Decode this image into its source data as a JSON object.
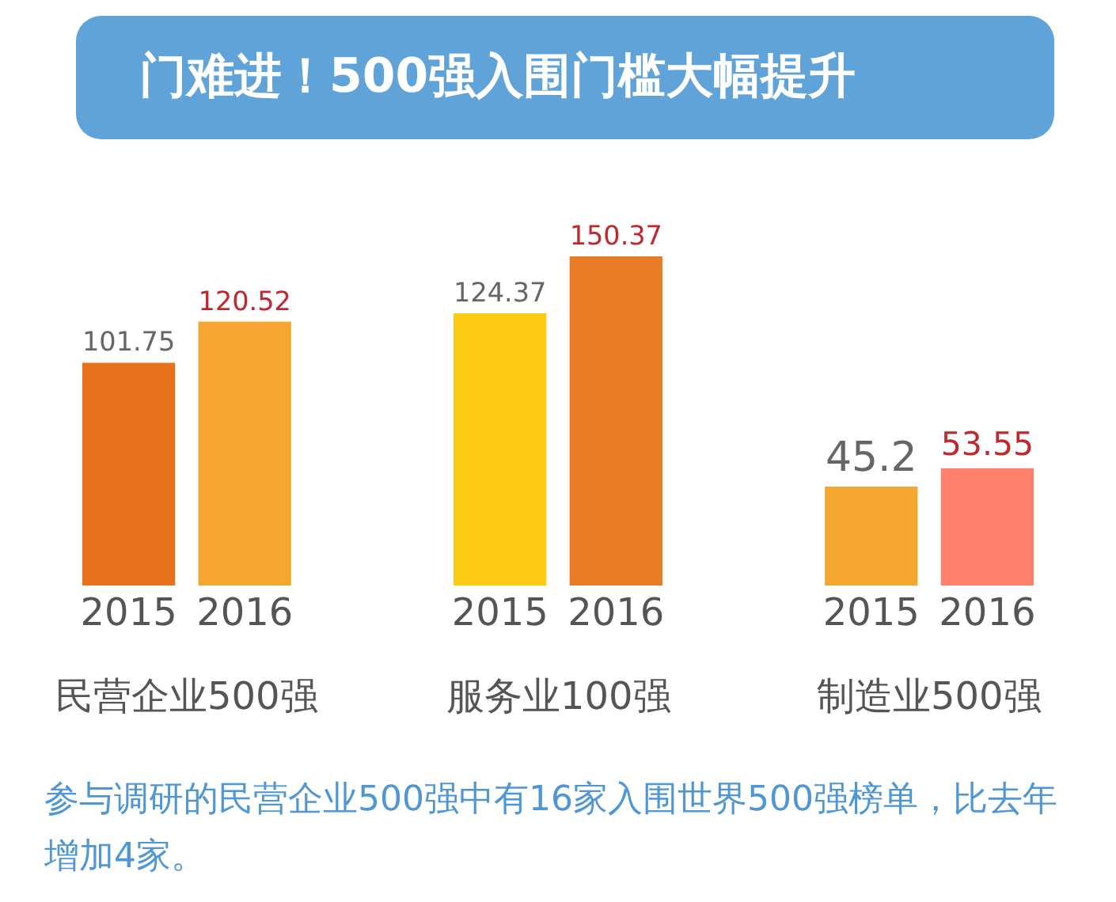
{
  "chart_data": {
    "type": "bar",
    "title": "门难进！500强入围门槛大幅提升",
    "categories": [
      "2015",
      "2016",
      "2015",
      "2016",
      "2015",
      "2016"
    ],
    "values": [
      101.75,
      120.52,
      124.37,
      150.37,
      45.2,
      53.55
    ],
    "colors": [
      "#e8711e",
      "#f5a631",
      "#fccb13",
      "#e97d26",
      "#f5a631",
      "#fe806a"
    ],
    "data_labels": true,
    "annotations": [
      "民营企业500强",
      "服务业100强",
      "制造业500强",
      "参与调研的民营企业500强中有16家入围世界500强榜单，比去年增加4家。"
    ]
  }
}
